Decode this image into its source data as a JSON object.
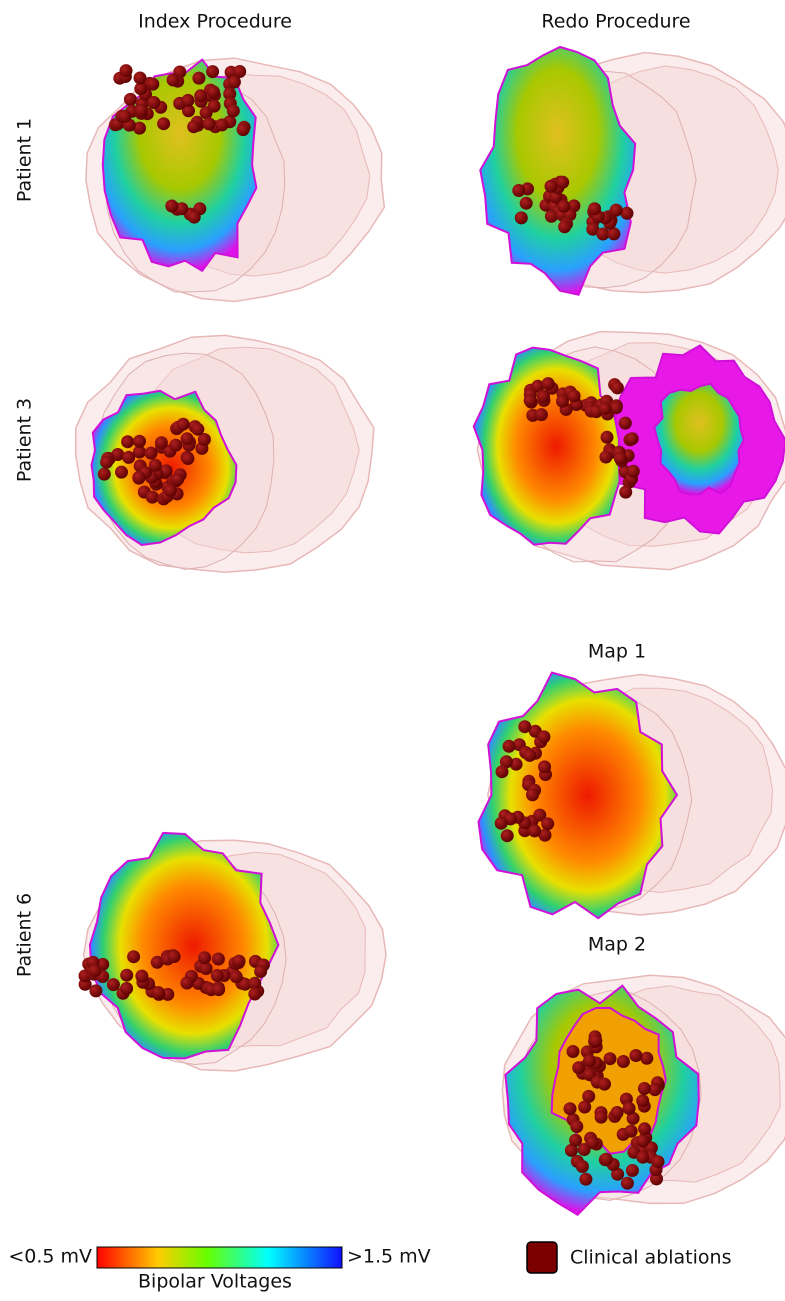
{
  "columns": [
    "Index Procedure",
    "Redo Procedure"
  ],
  "rows": [
    "Patient 1",
    "Patient 3",
    "Patient 6"
  ],
  "maps": [
    "Map 1",
    "Map 2"
  ],
  "colorbar": {
    "min_label": "<0.5 mV",
    "max_label": ">1.5 mV",
    "title": "Bipolar Voltages"
  },
  "legend": {
    "label": "Clinical ablations"
  }
}
